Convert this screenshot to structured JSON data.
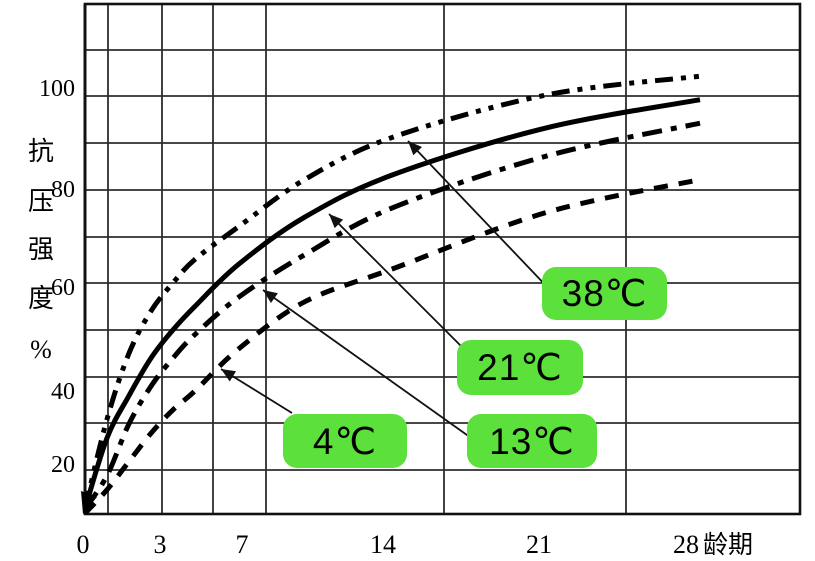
{
  "chart_data": {
    "type": "line",
    "title": "",
    "xlabel": "龄期",
    "ylabel": "抗压强度%",
    "x": [
      0,
      1,
      2,
      3,
      4,
      5,
      7,
      10,
      14,
      21,
      28
    ],
    "x_ticks": [
      0,
      3,
      7,
      14,
      21,
      28
    ],
    "y_ticks": [
      20,
      40,
      60,
      80,
      100
    ],
    "xlim": [
      0,
      32.5
    ],
    "ylim": [
      11,
      119
    ],
    "grid": true,
    "legend_position": "on-chart-callouts",
    "series": [
      {
        "label": "38℃",
        "line_style": "dash-dot-dot",
        "values": [
          12,
          31,
          45,
          54,
          60,
          65,
          72,
          82,
          91,
          100,
          104
        ]
      },
      {
        "label": "21℃",
        "line_style": "solid",
        "values": [
          12,
          27,
          36,
          44,
          50,
          55,
          64,
          74,
          83,
          93,
          99
        ]
      },
      {
        "label": "13℃",
        "line_style": "dash-dot",
        "values": [
          12,
          19,
          30,
          38,
          44,
          49,
          57,
          66,
          76,
          87,
          94
        ]
      },
      {
        "label": "4℃",
        "line_style": "dashed",
        "values": [
          11,
          16,
          22,
          28,
          33,
          37,
          46,
          56,
          63,
          75,
          82
        ]
      }
    ]
  },
  "y_axis": {
    "title_chars": [
      "抗",
      "压",
      "强",
      "度",
      "%"
    ],
    "tick_labels": [
      "100",
      "80",
      "60",
      "40",
      "20"
    ]
  },
  "x_axis": {
    "tick_labels": [
      "0",
      "3",
      "7",
      "14",
      "21",
      "28"
    ],
    "unit_label": "龄期"
  },
  "colors": {
    "label_bg": "#5ce03c",
    "curve": "#000000",
    "grid": "#2e2e2e"
  }
}
